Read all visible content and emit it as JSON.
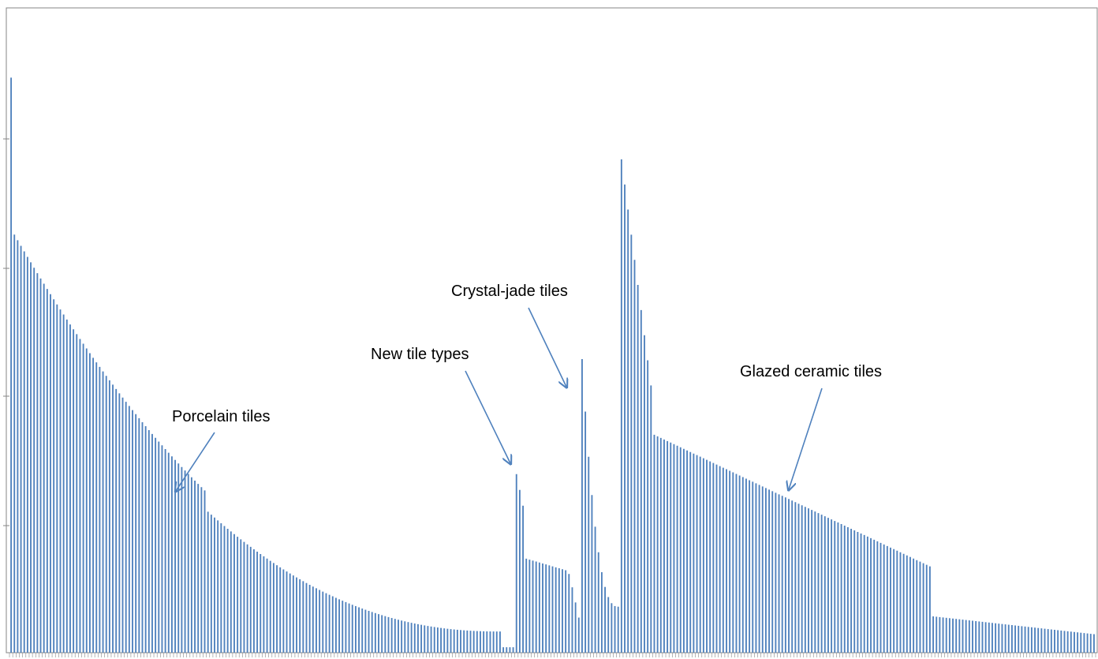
{
  "colors": {
    "bar": "#4f81bd",
    "axis": "#868686",
    "arrow": "#4f81bd",
    "text": "#000000"
  },
  "chart_data": {
    "type": "bar",
    "ylim": [
      0,
      100
    ],
    "grid": false,
    "legend": "none",
    "groups": [
      {
        "name": "Porcelain tiles",
        "count": 150,
        "start": 95,
        "end": 3.5,
        "profile": "porcelain"
      },
      {
        "name": "gap",
        "count": 4,
        "start": 0.9,
        "end": 0.9,
        "profile": "flat"
      },
      {
        "name": "New tile types",
        "count": 20,
        "start": 29.5,
        "end": 3.3,
        "profile": "newtypes"
      },
      {
        "name": "Crystal-jade tiles",
        "count": 12,
        "start": 48.5,
        "end": 7.6,
        "profile": "crystal"
      },
      {
        "name": "Glazed ceramic tiles",
        "count": 145,
        "start": 81.5,
        "end": 3.0,
        "profile": "glazed"
      }
    ],
    "annotations": [
      {
        "id": "porcelain",
        "text": "Porcelain tiles"
      },
      {
        "id": "newtypes",
        "text": "New tile types"
      },
      {
        "id": "crystal",
        "text": "Crystal-jade tiles"
      },
      {
        "id": "glazed",
        "text": "Glazed ceramic tiles"
      }
    ]
  }
}
